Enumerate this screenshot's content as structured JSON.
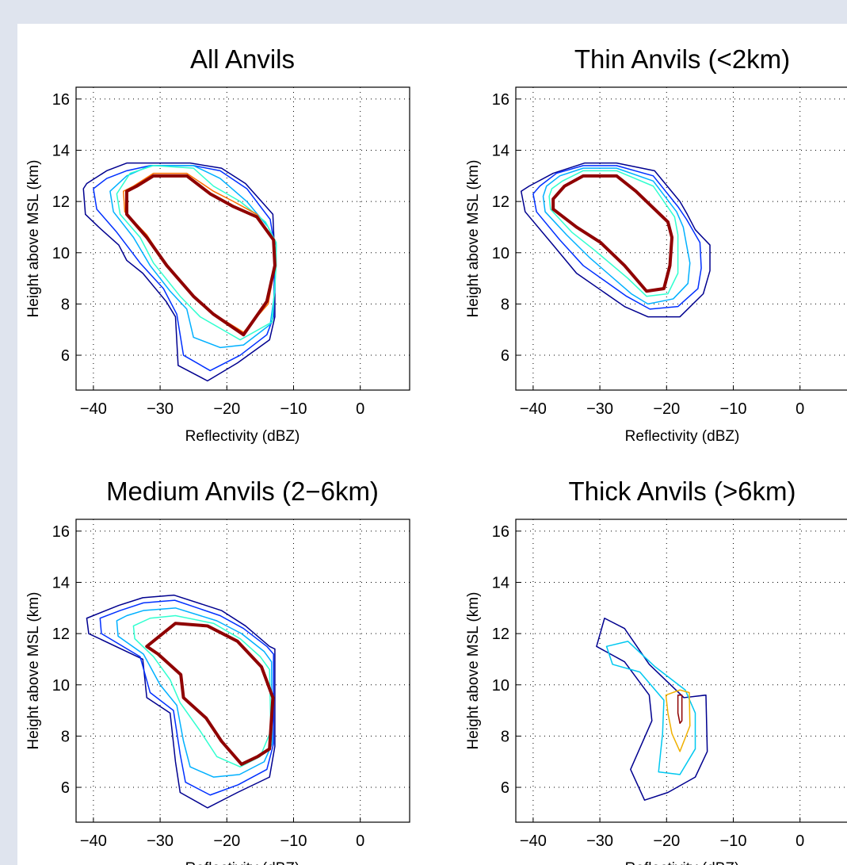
{
  "chart_data": [
    {
      "type": "contour",
      "title": "All Anvils",
      "xlabel": "Reflectivity (dBZ)",
      "ylabel": "Height above MSL (km)",
      "xlim": [
        -42.6,
        7.4
      ],
      "ylim": [
        4.64,
        16.46
      ],
      "xticks": [
        {
          "value": -40,
          "label": "−40"
        },
        {
          "value": -30,
          "label": "−30"
        },
        {
          "value": -20,
          "label": "−20"
        },
        {
          "value": -10,
          "label": "−10"
        },
        0
      ],
      "yticks": [
        6,
        8,
        10,
        12,
        14,
        16
      ],
      "grid": true,
      "series": [
        {
          "color": "#00008f",
          "x": [
            -41.5,
            -41.2,
            -39.2,
            -36.2,
            -35,
            -32.6,
            -29.1,
            -27.7,
            -27.3,
            -22.9,
            -18.4,
            -13.6,
            -12.8,
            -12.8,
            -13.1,
            -14.8,
            -17.2,
            -20.8,
            -25.5,
            -35,
            -38,
            -41
          ],
          "y": [
            12.5,
            11.5,
            11,
            10.3,
            9.7,
            9.2,
            8.1,
            7.5,
            5.6,
            5,
            5.7,
            6.6,
            7.5,
            9.7,
            11.5,
            12,
            12.7,
            13.3,
            13.5,
            13.5,
            13.2,
            12.7
          ]
        },
        {
          "color": "#0030ff",
          "x": [
            -40,
            -39.5,
            -36.5,
            -33,
            -29.5,
            -27.5,
            -26.5,
            -22.5,
            -18,
            -14,
            -13,
            -12.8,
            -13.5,
            -17,
            -21,
            -25,
            -31.5,
            -35,
            -38
          ],
          "y": [
            12.5,
            11.7,
            10.8,
            9.6,
            8.6,
            7.6,
            6,
            5.4,
            6,
            6.8,
            7.5,
            10.2,
            11.3,
            12.5,
            13.2,
            13.4,
            13.4,
            13.2,
            12.9
          ]
        },
        {
          "color": "#00b0ff",
          "x": [
            -37.5,
            -37,
            -34,
            -31.5,
            -28.5,
            -26,
            -25,
            -21,
            -17.5,
            -13.5,
            -12.8,
            -12.6,
            -13.8,
            -17,
            -21,
            -25,
            -31.5,
            -35
          ],
          "y": [
            12.4,
            11.6,
            10.6,
            9.5,
            8.5,
            7.8,
            6.7,
            6.3,
            6.4,
            7.2,
            8.5,
            10.3,
            11,
            12,
            12.9,
            13.4,
            13.4,
            13
          ]
        },
        {
          "color": "#30ffd0",
          "x": [
            -36.5,
            -36,
            -33,
            -31,
            -27,
            -24,
            -18,
            -13.2,
            -12.6,
            -12.6,
            -14.2,
            -18,
            -22,
            -25,
            -31,
            -34.5
          ],
          "y": [
            12.3,
            11.5,
            10.6,
            9.6,
            8.3,
            7.5,
            6.6,
            7.3,
            9.5,
            10.4,
            11.2,
            12,
            12.6,
            13.3,
            13.4,
            13.1
          ]
        },
        {
          "color": "#ff7000",
          "x": [
            -35.5,
            -35.3,
            -32,
            -29.5,
            -25.5,
            -22.5,
            -17.5,
            -13.8,
            -12.8,
            -13,
            -15.5,
            -19,
            -22,
            -26,
            -31,
            -34
          ],
          "y": [
            12.4,
            11.6,
            10.7,
            9.7,
            8.4,
            7.7,
            6.9,
            8,
            9.5,
            10.5,
            11.5,
            12,
            12.4,
            13.1,
            13.1,
            12.6
          ]
        },
        {
          "color": "#8f0000",
          "x": [
            -35,
            -35,
            -32,
            -29,
            -25,
            -22,
            -17.5,
            -14,
            -12.8,
            -13,
            -15.5,
            -19,
            -22.5,
            -26,
            -31,
            -33.5
          ],
          "y": [
            12.4,
            11.5,
            10.6,
            9.5,
            8.3,
            7.6,
            6.8,
            8.1,
            9.5,
            10.5,
            11.4,
            11.8,
            12.3,
            13,
            13,
            12.6
          ]
        }
      ]
    },
    {
      "type": "contour",
      "title": "Thin Anvils (<2km)",
      "xlabel": "Reflectivity (dBZ)",
      "ylabel": "Height above MSL (km)",
      "xlim": [
        -42.6,
        7.4
      ],
      "ylim": [
        4.64,
        16.46
      ],
      "xticks": [
        {
          "value": -40,
          "label": "−40"
        },
        {
          "value": -30,
          "label": "−30"
        },
        {
          "value": -20,
          "label": "−20"
        },
        {
          "value": -10,
          "label": "−10"
        },
        0
      ],
      "yticks": [
        6,
        8,
        10,
        12,
        14,
        16
      ],
      "grid": true,
      "series": [
        {
          "color": "#00008f",
          "x": [
            -41.8,
            -41.2,
            -37,
            -33.5,
            -26.3,
            -22.8,
            -18,
            -14.5,
            -13.5,
            -13.5,
            -15.7,
            -16.9,
            -18,
            -21.8,
            -27.5,
            -32.3,
            -37,
            -40.6
          ],
          "y": [
            12.4,
            11.6,
            10.3,
            9.2,
            7.9,
            7.5,
            7.5,
            8.4,
            9.3,
            10.3,
            10.9,
            11.5,
            12,
            13.2,
            13.5,
            13.5,
            13.1,
            12.6
          ]
        },
        {
          "color": "#0030ff",
          "x": [
            -40,
            -39.5,
            -36,
            -32.5,
            -26,
            -22.5,
            -18.3,
            -15.3,
            -14.8,
            -15,
            -17,
            -18.3,
            -22,
            -27.5,
            -32.5,
            -36.5,
            -39
          ],
          "y": [
            12.3,
            11.6,
            10.5,
            9.5,
            8.3,
            7.8,
            7.9,
            8.6,
            9.4,
            10.4,
            11.3,
            11.8,
            13,
            13.4,
            13.4,
            13.1,
            12.6
          ]
        },
        {
          "color": "#00b0ff",
          "x": [
            -38.5,
            -38.2,
            -35,
            -31.5,
            -25.3,
            -22.8,
            -19,
            -16.8,
            -16.5,
            -17.5,
            -18.5,
            -22,
            -27.5,
            -32.5,
            -36,
            -38
          ],
          "y": [
            12.2,
            11.6,
            10.7,
            9.8,
            8.4,
            8,
            8.2,
            8.8,
            9.6,
            11,
            11.6,
            12.8,
            13.3,
            13.3,
            13,
            12.6
          ]
        },
        {
          "color": "#30ffd0",
          "x": [
            -37.6,
            -37.4,
            -34.2,
            -30.8,
            -25.8,
            -23,
            -19.8,
            -18.3,
            -18.3,
            -18.8,
            -22,
            -27.5,
            -32.5,
            -35.6,
            -37.2
          ],
          "y": [
            12.2,
            11.7,
            10.8,
            10.1,
            9,
            8.3,
            8.4,
            9.2,
            10.7,
            11.4,
            12.6,
            13.2,
            13.2,
            12.8,
            12.5
          ]
        },
        {
          "color": "#8f0000",
          "x": [
            -37,
            -37,
            -33.5,
            -29.9,
            -26.3,
            -23,
            -20.4,
            -19.5,
            -19.2,
            -19.8,
            -21.8,
            -24.6,
            -27.5,
            -32.5,
            -35.3
          ],
          "y": [
            12.1,
            11.7,
            11,
            10.4,
            9.5,
            8.5,
            8.6,
            9.5,
            10.6,
            11.2,
            11.7,
            12.4,
            13,
            13,
            12.6
          ]
        }
      ]
    },
    {
      "type": "contour",
      "title": "Medium Anvils (2−6km)",
      "xlabel": "Reflectivity (dBZ)",
      "ylabel": "Height above MSL (km)",
      "xlim": [
        -42.6,
        7.4
      ],
      "ylim": [
        4.64,
        16.46
      ],
      "xticks": [
        {
          "value": -40,
          "label": "−40"
        },
        {
          "value": -30,
          "label": "−30"
        },
        {
          "value": -20,
          "label": "−20"
        },
        {
          "value": -10,
          "label": "−10"
        },
        0
      ],
      "yticks": [
        6,
        8,
        10,
        12,
        14,
        16
      ],
      "grid": true,
      "series": [
        {
          "color": "#00008f",
          "x": [
            -41,
            -40.7,
            -32.6,
            -32,
            -28.5,
            -27.7,
            -27,
            -22.9,
            -18.4,
            -13.6,
            -12.8,
            -12.8,
            -13.6,
            -17.2,
            -20.8,
            -27.9,
            -32.6,
            -36.2
          ],
          "y": [
            12.6,
            12,
            11,
            9.5,
            8.9,
            7,
            5.8,
            5.2,
            5.8,
            6.4,
            7.6,
            11.4,
            11.5,
            12.3,
            12.9,
            13.5,
            13.4,
            13.1
          ]
        },
        {
          "color": "#0030ff",
          "x": [
            -39,
            -38.8,
            -33,
            -31.5,
            -28,
            -27,
            -26.2,
            -22.5,
            -18.3,
            -14,
            -13,
            -13,
            -14,
            -17.5,
            -21,
            -27.8,
            -32.5,
            -36
          ],
          "y": [
            12.6,
            12,
            11.1,
            9.7,
            9,
            7.3,
            6.2,
            5.7,
            6.1,
            6.7,
            7.7,
            11.2,
            11.5,
            12.2,
            12.7,
            13.3,
            13.2,
            12.9
          ]
        },
        {
          "color": "#00b0ff",
          "x": [
            -36.5,
            -36.3,
            -32.5,
            -30,
            -27.5,
            -26.5,
            -25.5,
            -22,
            -18.1,
            -14.4,
            -13.2,
            -13.3,
            -14.4,
            -17.8,
            -21.5,
            -27.7,
            -32.5,
            -35
          ],
          "y": [
            12.5,
            11.9,
            11.2,
            10,
            9.2,
            7.8,
            6.8,
            6.4,
            6.5,
            7,
            7.7,
            10.9,
            11.3,
            12,
            12.5,
            13,
            12.9,
            12.7
          ]
        },
        {
          "color": "#30ffd0",
          "x": [
            -34,
            -33.8,
            -31,
            -28.5,
            -27,
            -24,
            -21.5,
            -18,
            -15,
            -13.4,
            -13.6,
            -15,
            -18,
            -22,
            -27.7,
            -31.5
          ],
          "y": [
            12.3,
            11.8,
            11.1,
            10.2,
            9.3,
            8.2,
            7.2,
            6.8,
            7.2,
            8.2,
            10.6,
            11.1,
            11.8,
            12.4,
            12.7,
            12.6
          ]
        },
        {
          "color": "#8f0000",
          "x": [
            -32,
            -27.7,
            -22.9,
            -18.4,
            -14.8,
            -13.1,
            -13.6,
            -15.4,
            -17.8,
            -20.8,
            -23.1,
            -26.5,
            -26.9,
            -30.3
          ],
          "y": [
            11.5,
            12.4,
            12.3,
            11.7,
            10.7,
            9.5,
            7.5,
            7.2,
            6.9,
            7.8,
            8.7,
            9.5,
            10.4,
            11.2
          ]
        }
      ]
    },
    {
      "type": "contour",
      "title": "Thick Anvils (>6km)",
      "xlabel": "Reflectivity (dBZ)",
      "ylabel": "Height above MSL (km)",
      "xlim": [
        -42.6,
        7.4
      ],
      "ylim": [
        4.64,
        16.46
      ],
      "xticks": [
        {
          "value": -40,
          "label": "−40"
        },
        {
          "value": -30,
          "label": "−30"
        },
        {
          "value": -20,
          "label": "−20"
        },
        {
          "value": -10,
          "label": "−10"
        },
        0
      ],
      "yticks": [
        6,
        8,
        10,
        12,
        14,
        16
      ],
      "grid": true,
      "series": [
        {
          "color": "#00008f",
          "x": [
            -30.5,
            -29.3,
            -26.3,
            -22.6,
            -17.4,
            -14.1,
            -13.9,
            -15.7,
            -19.8,
            -23.3,
            -25.4,
            -22.2,
            -22.6,
            -26.3
          ],
          "y": [
            11.5,
            12.6,
            12.2,
            10.8,
            9.5,
            9.6,
            7.4,
            6.4,
            5.8,
            5.5,
            6.7,
            8.6,
            9.6,
            10.9
          ]
        },
        {
          "color": "#00c8f0",
          "x": [
            -29,
            -25.8,
            -21.7,
            -17.2,
            -15.7,
            -15.7,
            -18,
            -21.2,
            -20.6,
            -20.4,
            -24,
            -28.1
          ],
          "y": [
            11.5,
            11.7,
            10.7,
            9.8,
            8.9,
            7.5,
            6.5,
            6.6,
            8.1,
            9.4,
            10.5,
            10.8
          ]
        },
        {
          "color": "#f0b000",
          "x": [
            -20.1,
            -18,
            -16.6,
            -16.5,
            -18,
            -19.2,
            -19.8
          ],
          "y": [
            9.6,
            9.8,
            9.7,
            8.4,
            7.4,
            8.1,
            8.9
          ]
        },
        {
          "color": "#8f0000",
          "x": [
            -18.3,
            -17.7,
            -17.7,
            -18,
            -18.3
          ],
          "y": [
            9.6,
            9.6,
            8.6,
            8.5,
            8.9
          ]
        }
      ]
    }
  ]
}
